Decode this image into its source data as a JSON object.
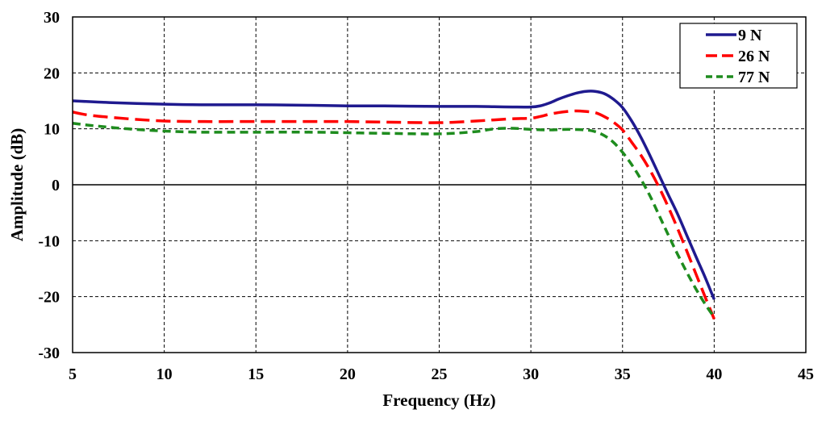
{
  "chart_data": {
    "type": "line",
    "title": "",
    "xlabel": "Frequency (Hz)",
    "ylabel": "Amplitude (dB)",
    "xlim": [
      5,
      45
    ],
    "ylim": [
      -30,
      30
    ],
    "xticks": [
      5,
      10,
      15,
      20,
      25,
      30,
      35,
      40,
      45
    ],
    "yticks": [
      -30,
      -20,
      -10,
      0,
      10,
      20,
      30
    ],
    "grid": true,
    "legend_position": "top-right",
    "series": [
      {
        "name": "9  N",
        "color": "#1f1a8f",
        "dash": "solid",
        "x": [
          5,
          7,
          10,
          12,
          15,
          18,
          20,
          22,
          25,
          27,
          28,
          29,
          30,
          30.5,
          31,
          31.5,
          32,
          32.5,
          33,
          33.5,
          34,
          34.5,
          35,
          35.5,
          36,
          36.5,
          37,
          37.5,
          38,
          38.5,
          39,
          39.5,
          40
        ],
        "y": [
          15.0,
          14.7,
          14.4,
          14.3,
          14.3,
          14.2,
          14.1,
          14.1,
          14.0,
          14.0,
          13.95,
          13.9,
          13.9,
          14.1,
          14.6,
          15.3,
          15.9,
          16.4,
          16.7,
          16.7,
          16.3,
          15.3,
          13.8,
          11.4,
          8.5,
          5.2,
          1.7,
          -1.8,
          -5.2,
          -9.0,
          -12.8,
          -16.5,
          -20.5
        ]
      },
      {
        "name": "26 N",
        "color": "#ff0000",
        "dash": "long-dash",
        "x": [
          5,
          6,
          8,
          10,
          12,
          15,
          18,
          20,
          22,
          25,
          27,
          28,
          29,
          30,
          30.5,
          31,
          31.5,
          32,
          32.5,
          33,
          33.5,
          34,
          34.5,
          35,
          35.5,
          36,
          36.5,
          37,
          37.5,
          38,
          38.5,
          39,
          39.5,
          40
        ],
        "y": [
          13.0,
          12.4,
          11.8,
          11.4,
          11.3,
          11.3,
          11.3,
          11.3,
          11.2,
          11.1,
          11.4,
          11.6,
          11.8,
          11.9,
          12.2,
          12.6,
          12.9,
          13.1,
          13.2,
          13.1,
          12.9,
          12.2,
          11.2,
          9.8,
          7.6,
          5.3,
          2.6,
          -0.5,
          -4.0,
          -7.8,
          -11.8,
          -15.9,
          -20.0,
          -24.0
        ]
      },
      {
        "name": "77 N",
        "color": "#1e8c1e",
        "dash": "short-dash",
        "x": [
          5,
          6,
          8,
          10,
          12,
          15,
          18,
          20,
          22,
          25,
          27,
          28,
          29,
          30,
          31,
          32,
          33,
          33.5,
          34,
          34.5,
          35,
          35.5,
          36,
          36.5,
          37,
          37.5,
          38,
          38.5,
          39,
          39.5,
          40
        ],
        "y": [
          11.0,
          10.6,
          10.0,
          9.6,
          9.4,
          9.4,
          9.4,
          9.3,
          9.2,
          9.1,
          9.5,
          10.0,
          10.1,
          9.9,
          9.8,
          9.9,
          9.8,
          9.5,
          8.8,
          7.6,
          5.8,
          3.6,
          1.0,
          -2.0,
          -5.5,
          -9.0,
          -12.4,
          -15.6,
          -18.6,
          -21.3,
          -23.7
        ]
      }
    ]
  }
}
